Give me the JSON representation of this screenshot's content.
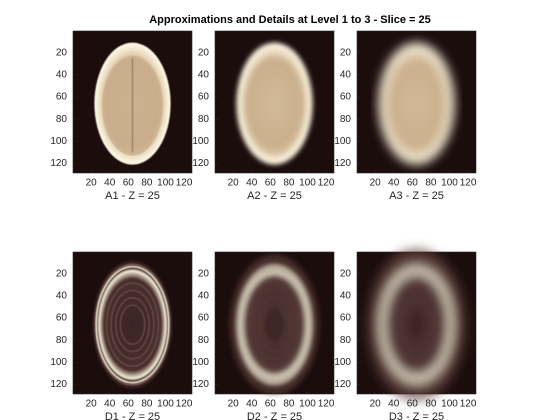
{
  "figure": {
    "title": "Approximations and Details at Level 1 to 3 - Slice = 25"
  },
  "chart_data": [
    {
      "type": "image",
      "xlabel": "A1 - Z = 25",
      "xlim": [
        0.5,
        128.5
      ],
      "ylim": [
        0.5,
        128.5
      ],
      "y_reversed": true,
      "xticks": [
        20,
        40,
        60,
        80,
        100,
        120
      ],
      "yticks": [
        20,
        40,
        60,
        80,
        100,
        120
      ]
    },
    {
      "type": "image",
      "xlabel": "A2 - Z = 25",
      "xlim": [
        0.5,
        128.5
      ],
      "ylim": [
        0.5,
        128.5
      ],
      "y_reversed": true,
      "xticks": [
        20,
        40,
        60,
        80,
        100,
        120
      ],
      "yticks": [
        20,
        40,
        60,
        80,
        100,
        120
      ]
    },
    {
      "type": "image",
      "xlabel": "A3 - Z = 25",
      "xlim": [
        0.5,
        128.5
      ],
      "ylim": [
        0.5,
        128.5
      ],
      "y_reversed": true,
      "xticks": [
        20,
        40,
        60,
        80,
        100,
        120
      ],
      "yticks": [
        20,
        40,
        60,
        80,
        100,
        120
      ]
    },
    {
      "type": "image",
      "xlabel": "D1 - Z = 25",
      "xlim": [
        0.5,
        128.5
      ],
      "ylim": [
        0.5,
        128.5
      ],
      "y_reversed": true,
      "xticks": [
        20,
        40,
        60,
        80,
        100,
        120
      ],
      "yticks": [
        20,
        40,
        60,
        80,
        100,
        120
      ]
    },
    {
      "type": "image",
      "xlabel": "D2 - Z = 25",
      "xlim": [
        0.5,
        128.5
      ],
      "ylim": [
        0.5,
        128.5
      ],
      "y_reversed": true,
      "xticks": [
        20,
        40,
        60,
        80,
        100,
        120
      ],
      "yticks": [
        20,
        40,
        60,
        80,
        100,
        120
      ]
    },
    {
      "type": "image",
      "xlabel": "D3 - Z = 25",
      "xlim": [
        0.5,
        128.5
      ],
      "ylim": [
        0.5,
        128.5
      ],
      "y_reversed": true,
      "xticks": [
        20,
        40,
        60,
        80,
        100,
        120
      ],
      "yticks": [
        20,
        40,
        60,
        80,
        100,
        120
      ]
    }
  ]
}
